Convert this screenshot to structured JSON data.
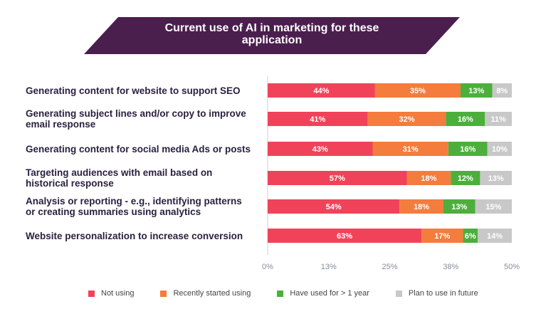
{
  "title": "Current use of AI in marketing for these application",
  "title_lines": [
    "Current use of AI in marketing for these",
    "application"
  ],
  "colors": {
    "banner": "#4a1f4e",
    "axis": "#cfcfcf",
    "tick_text": "#8a8aa0",
    "segment_text": "#ffffff"
  },
  "chart_data": {
    "type": "bar",
    "orientation": "horizontal",
    "stacked": true,
    "categories": [
      "Generating content for website to support SEO",
      "Generating subject lines and/or copy to improve email response",
      "Generating content for social media Ads or posts",
      "Targeting audiences with email based on historical response",
      "Analysis or reporting - e.g., identifying patterns or creating summaries using analytics",
      "Website personalization to increase conversion"
    ],
    "category_lines": [
      [
        "Generating content for website to support SEO"
      ],
      [
        "Generating subject lines and/or copy to improve",
        "email response"
      ],
      [
        "Generating content for social media Ads or posts"
      ],
      [
        "Targeting audiences with email based on",
        "historical response"
      ],
      [
        "Analysis or reporting - e.g., identifying patterns",
        "or creating summaries using analytics"
      ],
      [
        "Website personalization to increase conversion"
      ]
    ],
    "series": [
      {
        "name": "Not using",
        "color": "#f0435a",
        "values": [
          44,
          41,
          43,
          57,
          54,
          63
        ]
      },
      {
        "name": "Recently started using",
        "color": "#f47c3c",
        "values": [
          35,
          32,
          31,
          18,
          18,
          17
        ]
      },
      {
        "name": "Have used for > 1 year",
        "color": "#4caf3c",
        "values": [
          13,
          16,
          16,
          12,
          13,
          6
        ]
      },
      {
        "name": "Plan to use in future",
        "color": "#c8c8c8",
        "values": [
          8,
          11,
          10,
          13,
          15,
          14
        ]
      }
    ],
    "value_suffix": "%",
    "x_ticks": [
      "0%",
      "13%",
      "25%",
      "38%",
      "50%"
    ],
    "legend_position": "bottom"
  }
}
